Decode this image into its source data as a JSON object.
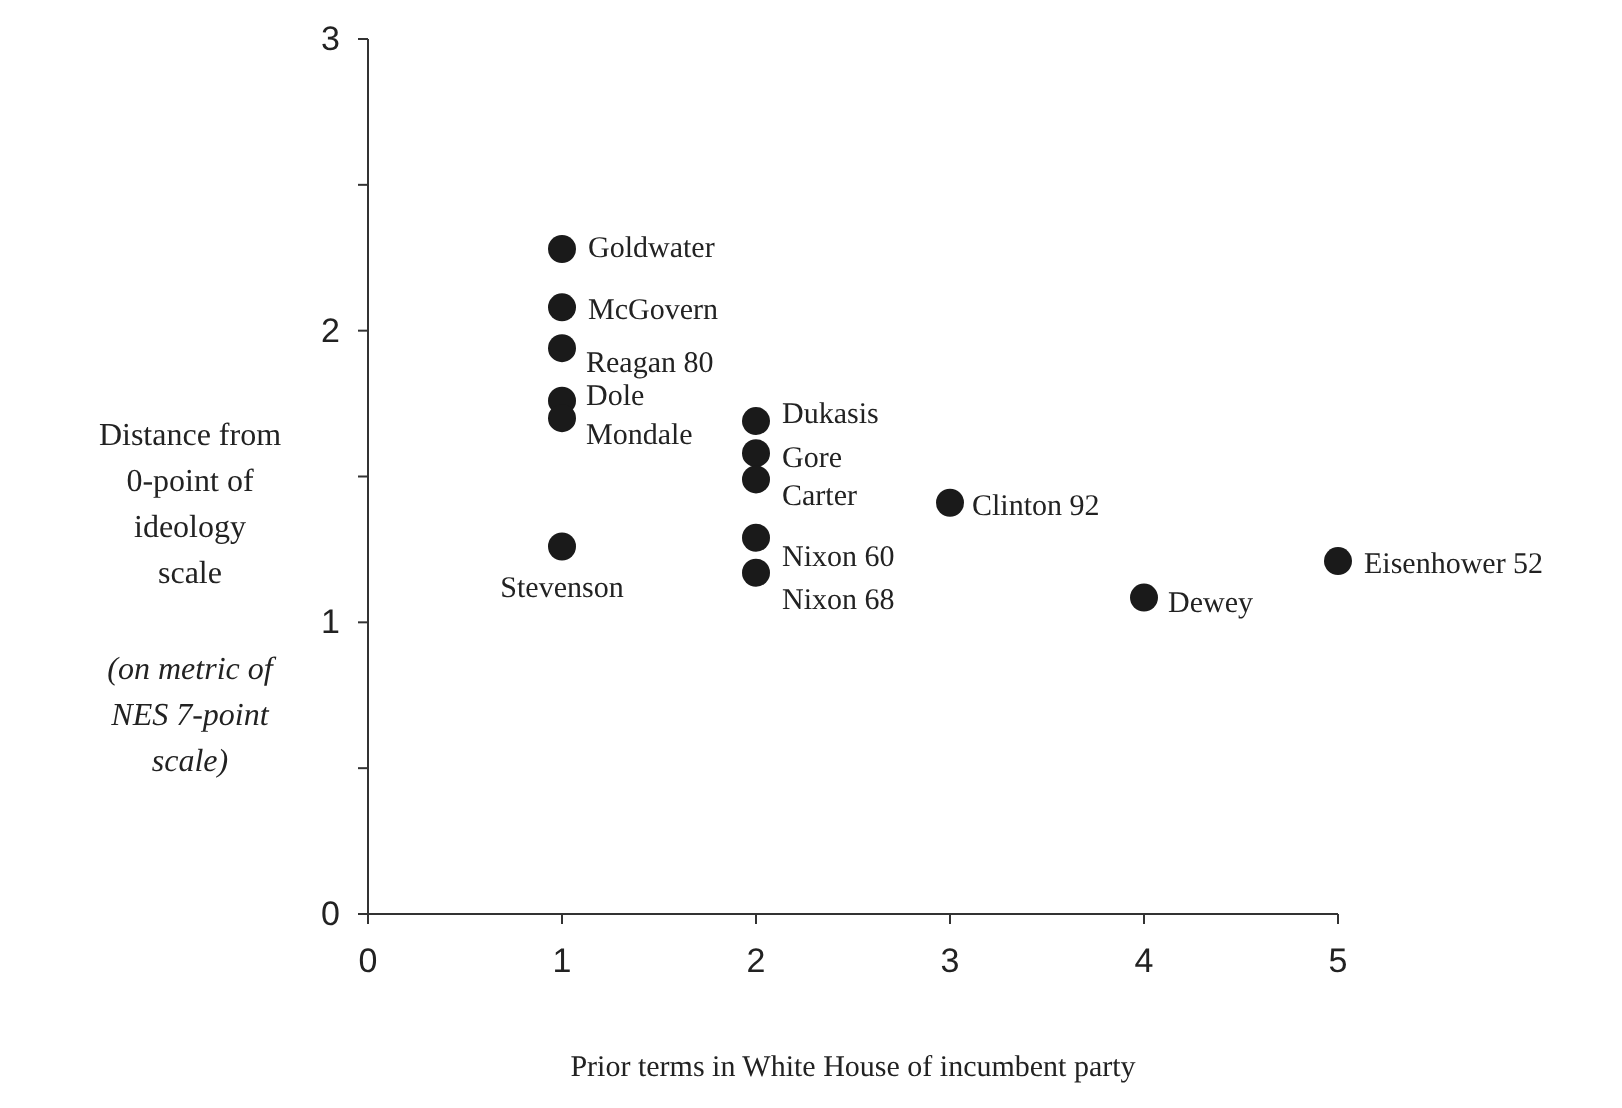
{
  "chart_data": {
    "type": "scatter",
    "xlabel": "Prior terms in White House of incumbent party",
    "ylabel": "Distance from 0-point of ideology scale",
    "x": [
      1,
      1,
      1,
      1,
      1,
      1,
      2,
      2,
      2,
      2,
      2,
      3,
      4,
      5
    ],
    "series": [
      {
        "color": "#1a1a1a",
        "values": [
          2.28,
          2.08,
          1.94,
          1.76,
          1.7,
          1.26,
          1.69,
          1.58,
          1.49,
          1.29,
          1.17,
          1.41,
          1.085,
          1.21
        ]
      }
    ],
    "marker": "circle",
    "xlim": [
      0,
      5
    ],
    "xticks": [
      0,
      1,
      2,
      3,
      4,
      5
    ],
    "ylim": [
      0,
      3
    ],
    "yticks": [
      0,
      {
        "value": 0.5,
        "label": null
      },
      1,
      {
        "value": 1.5,
        "label": null
      },
      2,
      {
        "value": 2.5,
        "label": null
      },
      3
    ],
    "grid": false,
    "annotations": [
      {
        "text": "Goldwater",
        "x": 1,
        "y": 2.28
      },
      {
        "text": "McGovern",
        "x": 1,
        "y": 2.08
      },
      {
        "text": "Reagan 80",
        "x": 1,
        "y": 1.94
      },
      {
        "text": "Dole",
        "x": 1,
        "y": 1.76
      },
      {
        "text": "Mondale",
        "x": 1,
        "y": 1.7
      },
      {
        "text": "Stevenson",
        "x": 1,
        "y": 1.26
      },
      {
        "text": "Dukasis",
        "x": 2,
        "y": 1.69
      },
      {
        "text": "Gore",
        "x": 2,
        "y": 1.58
      },
      {
        "text": "Carter",
        "x": 2,
        "y": 1.49
      },
      {
        "text": "Nixon 60",
        "x": 2,
        "y": 1.29
      },
      {
        "text": "Nixon 68",
        "x": 2,
        "y": 1.17
      },
      {
        "text": "Clinton 92",
        "x": 3,
        "y": 1.41
      },
      {
        "text": "Dewey",
        "x": 4,
        "y": 1.085
      },
      {
        "text": "Eisenhower 52",
        "x": 5,
        "y": 1.21
      },
      "(on metric of NES 7-point scale)"
    ]
  }
}
